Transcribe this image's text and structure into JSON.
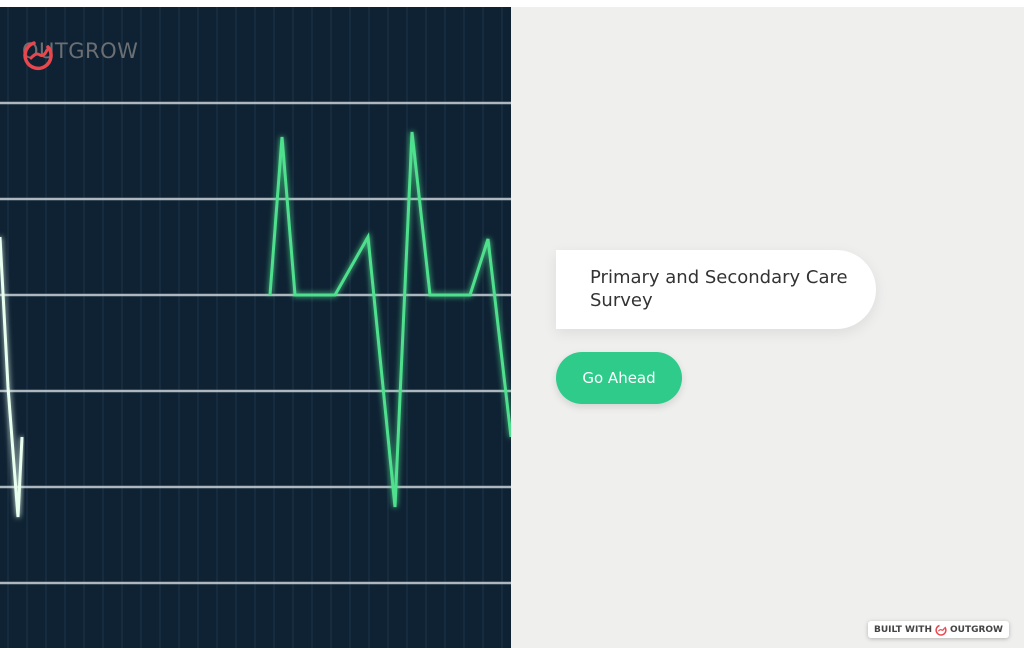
{
  "brand": {
    "name": "OUTGROW",
    "accent": "#e9474d"
  },
  "survey": {
    "title": "Primary and Secondary Care Survey",
    "cta_label": "Go Ahead",
    "cta_color": "#2ecb8a"
  },
  "footer": {
    "built_with": "BUILT WITH",
    "brand": "OUTGROW"
  }
}
